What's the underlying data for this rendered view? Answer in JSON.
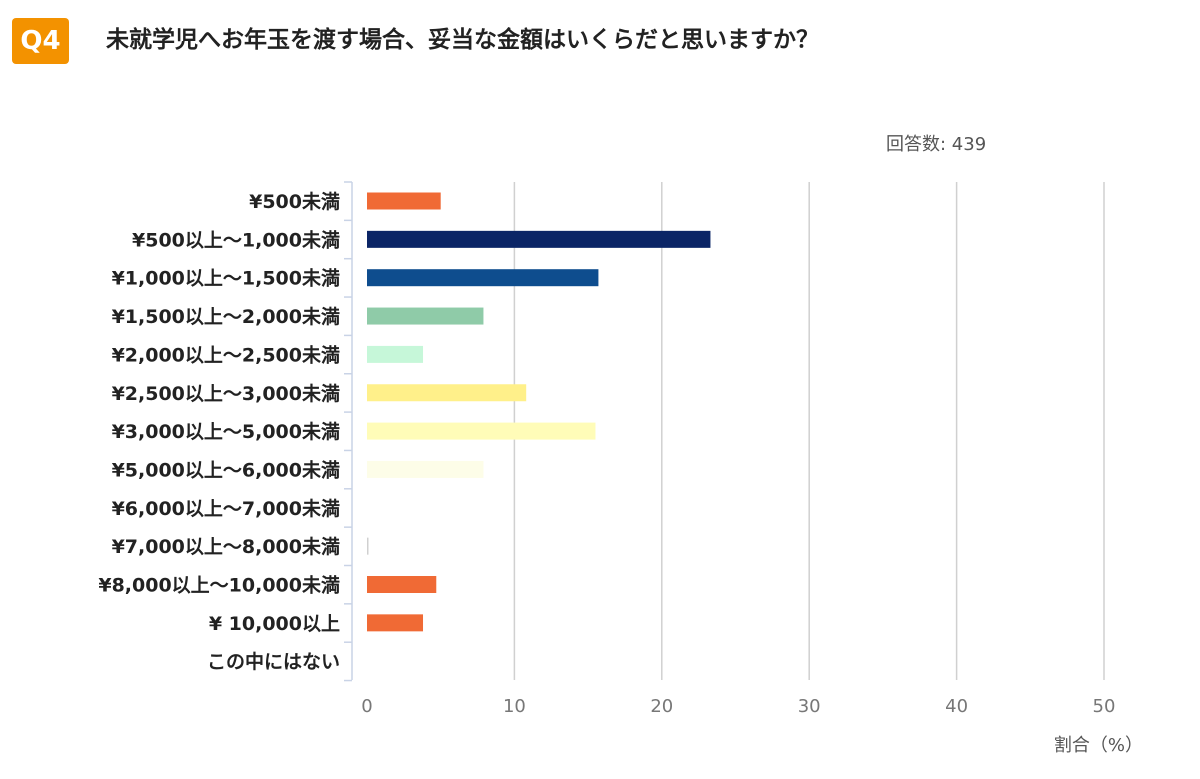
{
  "question": {
    "badge": "Q4",
    "title": "未就学児へお年玉を渡す場合、妥当な金額はいくらだと思いますか？"
  },
  "respondents": "回答数: 439",
  "chart_data": {
    "type": "bar",
    "orientation": "horizontal",
    "categories": [
      "¥500未満",
      "¥500以上～1,000未満",
      "¥1,000以上～1,500未満",
      "¥1,500以上～2,000未満",
      "¥2,000以上～2,500未満",
      "¥2,500以上～3,000未満",
      "¥3,000以上～5,000未満",
      "¥5,000以上～6,000未満",
      "¥6,000以上～7,000未満",
      "¥7,000以上～8,000未満",
      "¥8,000以上～10,000未満",
      "¥ 10,000以上",
      "この中にはない"
    ],
    "values": [
      5.0,
      23.3,
      15.7,
      7.9,
      3.8,
      10.8,
      15.5,
      7.9,
      0,
      0.1,
      4.7,
      3.8,
      0
    ],
    "colors": [
      "#f06a35",
      "#0b2566",
      "#0e4d8e",
      "#8fcba8",
      "#c6f7d9",
      "#fff08a",
      "#fffcb8",
      "#fdfde8",
      "#ffffff",
      "#d0d0d0",
      "#f06a35",
      "#f06a35",
      "#ffffff"
    ],
    "xlim": [
      0,
      50
    ],
    "xticks": [
      0,
      10,
      20,
      30,
      40,
      50
    ],
    "xlabel": "割合（%）",
    "grid": true
  }
}
